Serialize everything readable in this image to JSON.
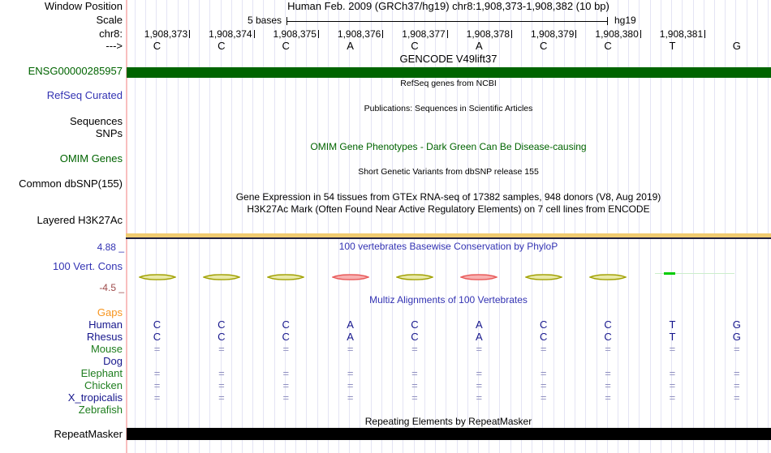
{
  "header": {
    "title": "Human Feb. 2009 (GRCh37/hg19)   chr8:1,908,373-1,908,382 (10 bp)",
    "window_position_label": "Window Position",
    "scale_row_label": "Scale",
    "chrom_label": "chr8:",
    "strand_label": "--->",
    "scale_text": "5 bases",
    "assembly": "hg19"
  },
  "ruler": {
    "positions": [
      "1,908,373",
      "1,908,374",
      "1,908,375",
      "1,908,376",
      "1,908,377",
      "1,908,378",
      "1,908,379",
      "1,908,380",
      "1,908,381"
    ],
    "bases": [
      "C",
      "C",
      "C",
      "A",
      "C",
      "A",
      "C",
      "C",
      "T",
      "G"
    ]
  },
  "tracks": {
    "gencode": {
      "left_label": "ENSG00000285957",
      "center_label": "GENCODE V49lift37",
      "bar_color": "#006400"
    },
    "refseq": {
      "left_label": "RefSeq Curated",
      "center_label": "RefSeq genes from NCBI"
    },
    "publications": {
      "left_label_line1": "Sequences",
      "left_label_line2": "SNPs",
      "center_label": "Publications: Sequences in Scientific Articles"
    },
    "omim": {
      "left_label": "OMIM Genes",
      "center_label": "OMIM Gene Phenotypes - Dark Green Can Be Disease-causing"
    },
    "dbsnp": {
      "left_label": "Common dbSNP(155)",
      "center_label": "Short Genetic Variants from dbSNP release 155"
    },
    "gtex": {
      "center_label": "Gene Expression in 54 tissues from GTEx RNA-seq of 17382 samples, 948 donors (V8, Aug 2019)"
    },
    "h3k27ac": {
      "left_label": "Layered H3K27Ac",
      "center_label": "H3K27Ac Mark (Often Found Near Active Regulatory Elements) on 7 cell lines from ENCODE",
      "bar_color": "#F0CB70"
    },
    "phylop": {
      "left_label": "100 Vert. Cons",
      "center_label": "100 vertebrates Basewise Conservation by PhyloP",
      "max_label": "4.88 _",
      "min_label": "-4.5 _",
      "marks": [
        {
          "base_index": 0,
          "type": "olive"
        },
        {
          "base_index": 1,
          "type": "olive"
        },
        {
          "base_index": 2,
          "type": "olive"
        },
        {
          "base_index": 3,
          "type": "red"
        },
        {
          "base_index": 4,
          "type": "olive"
        },
        {
          "base_index": 5,
          "type": "red"
        },
        {
          "base_index": 6,
          "type": "olive"
        },
        {
          "base_index": 7,
          "type": "olive"
        },
        {
          "base_index": 8,
          "type": "green"
        }
      ],
      "mark_colors": {
        "olive": "#A0A000",
        "olive_fill": "#E9E9A8",
        "red": "#E85858",
        "red_fill": "#F7B0B0",
        "green": "#00CC00",
        "green_faint": "#CCEECC"
      }
    },
    "multiz": {
      "center_label": "Multiz Alignments of 100 Vertebrates",
      "rows": [
        {
          "label": "Gaps",
          "label_color": "#F7941D",
          "cells": [],
          "cell_color": ""
        },
        {
          "label": "Human",
          "label_color": "#16168C",
          "cells": [
            "C",
            "C",
            "C",
            "A",
            "C",
            "A",
            "C",
            "C",
            "T",
            "G"
          ],
          "cell_color": "#16168C"
        },
        {
          "label": "Rhesus",
          "label_color": "#16168C",
          "cells": [
            "C",
            "C",
            "C",
            "A",
            "C",
            "A",
            "C",
            "C",
            "T",
            "G"
          ],
          "cell_color": "#16168C"
        },
        {
          "label": "Mouse",
          "label_color": "#1E7D1E",
          "cells": [
            "=",
            "=",
            "=",
            "=",
            "=",
            "=",
            "=",
            "=",
            "=",
            "="
          ],
          "cell_color": "#9090C0"
        },
        {
          "label": "Dog",
          "label_color": "#16168C",
          "cells": [],
          "cell_color": ""
        },
        {
          "label": "Elephant",
          "label_color": "#1E7D1E",
          "cells": [
            "=",
            "=",
            "=",
            "=",
            "=",
            "=",
            "=",
            "=",
            "=",
            "="
          ],
          "cell_color": "#9090C0"
        },
        {
          "label": "Chicken",
          "label_color": "#1E7D1E",
          "cells": [
            "=",
            "=",
            "=",
            "=",
            "=",
            "=",
            "=",
            "=",
            "=",
            "="
          ],
          "cell_color": "#9090C0"
        },
        {
          "label": "X_tropicalis",
          "label_color": "#16168C",
          "cells": [
            "=",
            "=",
            "=",
            "=",
            "=",
            "=",
            "=",
            "=",
            "=",
            "="
          ],
          "cell_color": "#9090C0"
        },
        {
          "label": "Zebrafish",
          "label_color": "#1E7D1E",
          "cells": [],
          "cell_color": ""
        }
      ]
    },
    "repeatmasker": {
      "left_label": "RepeatMasker",
      "center_label": "Repeating Elements by RepeatMasker",
      "bar_color": "#000000"
    }
  }
}
